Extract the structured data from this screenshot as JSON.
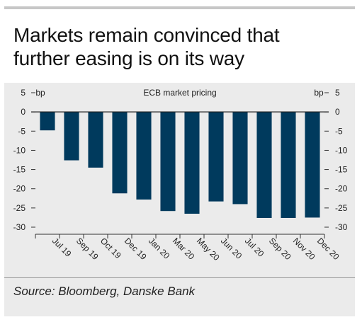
{
  "title_line1": "Markets remain convinced that",
  "title_line2": "further easing is on its way",
  "source": "Source: Bloomberg, Danske Bank",
  "chart_data": {
    "type": "bar",
    "title": "ECB market pricing",
    "ylabel_left": "bp",
    "ylabel_right": "bp",
    "categories": [
      "Jul 19",
      "Sep 19",
      "Oct 19",
      "Dec 19",
      "Jan 20",
      "Mar 20",
      "May 20",
      "Jun 20",
      "Jul 20",
      "Sep 20",
      "Nov 20",
      "Dec 20"
    ],
    "values": [
      -4.8,
      -12.6,
      -14.5,
      -21.2,
      -22.8,
      -25.8,
      -26.5,
      -23.3,
      -24.0,
      -27.6,
      -27.6,
      -27.5
    ],
    "ylim": [
      -30,
      5
    ],
    "yticks": [
      5,
      0,
      -5,
      -10,
      -15,
      -20,
      -25,
      -30
    ],
    "bar_color": "#003a5d",
    "grid": false,
    "legend": "none"
  }
}
